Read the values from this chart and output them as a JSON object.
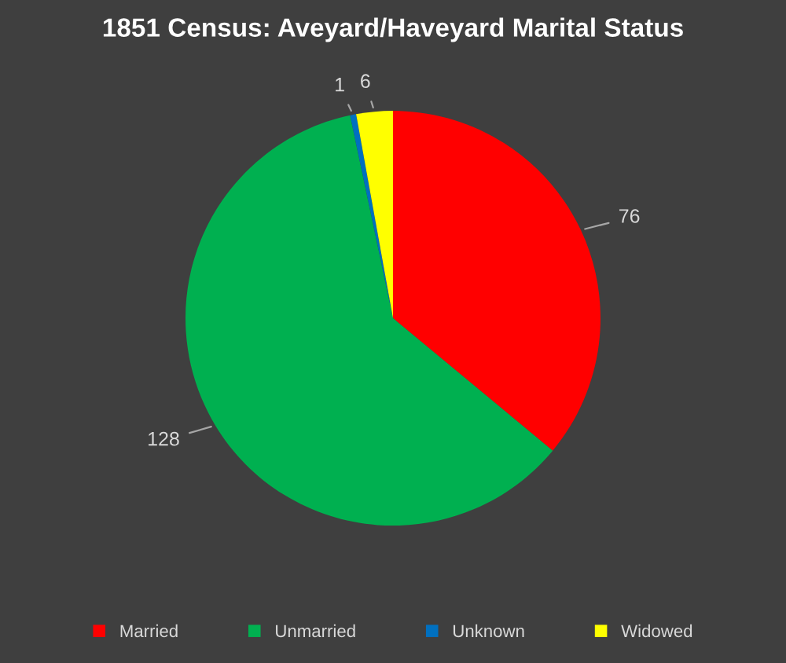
{
  "chart_data": {
    "type": "pie",
    "title": "1851 Census: Aveyard/Haveyard Marital Status",
    "categories": [
      "Married",
      "Unmarried",
      "Unknown",
      "Widowed"
    ],
    "values": [
      76,
      128,
      1,
      6
    ],
    "colors": [
      "#ff0000",
      "#00b050",
      "#0070c0",
      "#ffff00"
    ],
    "data_labels": true,
    "legend": "bottom"
  }
}
